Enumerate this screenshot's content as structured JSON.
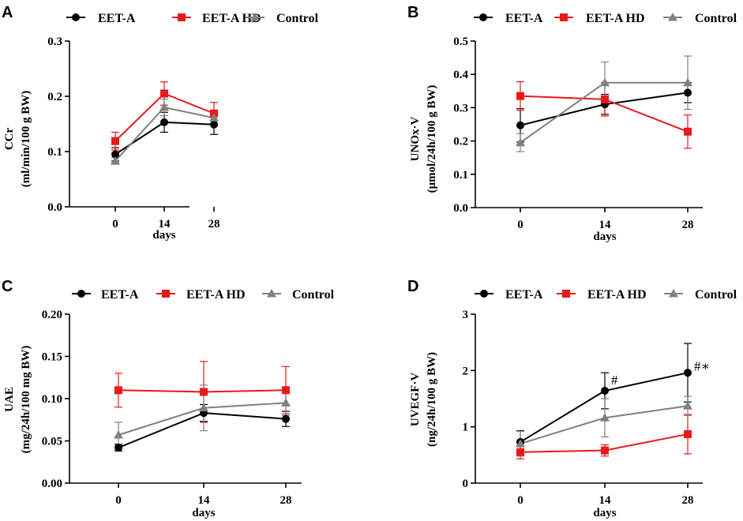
{
  "colors": {
    "eet_a": "#000000",
    "eet_a_hd": "#e8191a",
    "control": "#808080"
  },
  "chart_data": [
    {
      "panel": "A",
      "type": "line",
      "ylabel_line1": "CCr",
      "ylabel_line2": "(ml/min/100 g BW)",
      "xlabel": "days",
      "categories": [
        "0",
        "14",
        "28"
      ],
      "ylim": [
        0,
        0.3
      ],
      "yticks": [
        "0.0",
        "0.1",
        "0.2",
        "0.3"
      ],
      "series": [
        {
          "name": "EET-A",
          "marker": "circle",
          "values": [
            0.095,
            0.153,
            0.149
          ],
          "err": [
            0.012,
            0.018,
            0.018
          ]
        },
        {
          "name": "EET-A HD",
          "marker": "square",
          "values": [
            0.119,
            0.205,
            0.169
          ],
          "err": [
            0.016,
            0.021,
            0.02
          ]
        },
        {
          "name": "Control",
          "marker": "triangle",
          "values": [
            0.083,
            0.18,
            0.161
          ],
          "err": [
            0.006,
            0.015,
            0.012
          ]
        }
      ]
    },
    {
      "panel": "B",
      "type": "line",
      "ylabel_line1": "UNOx·V",
      "ylabel_line2": "(μmol/24h/100 g BW)",
      "xlabel": "days",
      "categories": [
        "0",
        "14",
        "28"
      ],
      "ylim": [
        0,
        0.5
      ],
      "yticks": [
        "0.0",
        "0.1",
        "0.2",
        "0.3",
        "0.4",
        "0.5"
      ],
      "series": [
        {
          "name": "EET-A",
          "marker": "circle",
          "values": [
            0.247,
            0.31,
            0.345
          ],
          "err": [
            0.05,
            0.03,
            0.03
          ]
        },
        {
          "name": "EET-A HD",
          "marker": "square",
          "values": [
            0.335,
            0.325,
            0.228
          ],
          "err": [
            0.043,
            0.05,
            0.05
          ]
        },
        {
          "name": "Control",
          "marker": "triangle",
          "values": [
            0.195,
            0.375,
            0.375
          ],
          "err": [
            0.027,
            0.062,
            0.08
          ]
        }
      ]
    },
    {
      "panel": "C",
      "type": "line",
      "ylabel_line1": "UAE",
      "ylabel_line2": "(mg/24h/100 mg BW)",
      "xlabel": "days",
      "categories": [
        "0",
        "14",
        "28"
      ],
      "ylim": [
        0,
        0.2
      ],
      "yticks": [
        "0.00",
        "0.05",
        "0.10",
        "0.15",
        "0.20"
      ],
      "series": [
        {
          "name": "EET-A",
          "marker": "circle",
          "values": [
            0.042,
            0.083,
            0.076
          ],
          "err": [
            0.004,
            0.01,
            0.009
          ]
        },
        {
          "name": "EET-A HD",
          "marker": "square",
          "values": [
            0.11,
            0.108,
            0.11
          ],
          "err": [
            0.02,
            0.036,
            0.028
          ]
        },
        {
          "name": "Control",
          "marker": "triangle",
          "values": [
            0.057,
            0.089,
            0.095
          ],
          "err": [
            0.015,
            0.027,
            0.015
          ]
        }
      ]
    },
    {
      "panel": "D",
      "type": "line",
      "ylabel_line1": "UVEGF·V",
      "ylabel_line2": "(ng/24h/100 g BW)",
      "xlabel": "days",
      "categories": [
        "0",
        "14",
        "28"
      ],
      "ylim": [
        0,
        3
      ],
      "yticks": [
        "0",
        "1",
        "2",
        "3"
      ],
      "series": [
        {
          "name": "EET-A",
          "marker": "circle",
          "values": [
            0.73,
            1.64,
            1.96
          ],
          "err": [
            0.2,
            0.32,
            0.52
          ]
        },
        {
          "name": "EET-A HD",
          "marker": "square",
          "values": [
            0.55,
            0.58,
            0.87
          ],
          "err": [
            0.12,
            0.1,
            0.35
          ]
        },
        {
          "name": "Control",
          "marker": "triangle",
          "values": [
            0.7,
            1.16,
            1.37
          ],
          "err": [
            0.22,
            0.34,
            0.17
          ]
        }
      ],
      "annotations": [
        {
          "category": "14",
          "value": 1.75,
          "text": "#"
        },
        {
          "category": "28",
          "value": 2.0,
          "text": "#∗"
        }
      ]
    }
  ]
}
